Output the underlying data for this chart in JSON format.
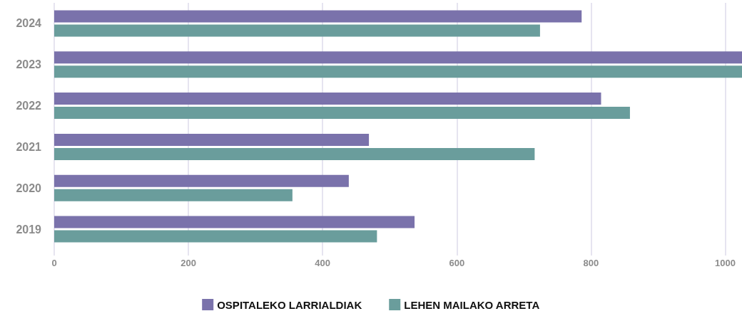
{
  "chart_data": {
    "type": "bar",
    "orientation": "horizontal",
    "categories": [
      "2024",
      "2023",
      "2022",
      "2021",
      "2020",
      "2019"
    ],
    "series": [
      {
        "name": "OSPITALEKO LARRIALDIAK",
        "color": "#7a72ab",
        "values": [
          786,
          1025,
          815,
          469,
          439,
          537
        ]
      },
      {
        "name": "LEHEN MAILAKO ARRETA",
        "color": "#6a9d9c",
        "values": [
          724,
          1025,
          858,
          716,
          355,
          481
        ]
      }
    ],
    "xlim": [
      0,
      1025
    ],
    "xticks": [
      0,
      200,
      400,
      600,
      800,
      1000
    ],
    "grid": "x",
    "legend": "bottom"
  }
}
